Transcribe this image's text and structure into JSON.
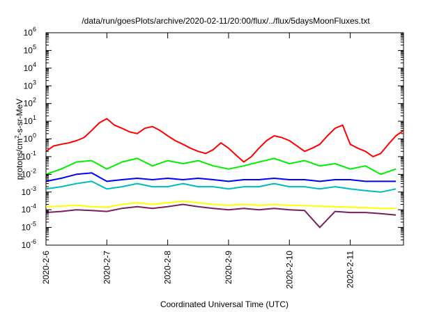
{
  "chart_data": {
    "type": "line",
    "title": "/data/run/goesPlots/archive/2020-02-11/20:00/flux/../flux/5daysMoonFluxes.txt",
    "xlabel": "Coordinated Universal Time (UTC)",
    "ylabel": "protons/cm²-s-sr-MeV",
    "ylabel_parts": {
      "pre": "protons/cm",
      "sup": "2",
      "post": "-s-sr-MeV"
    },
    "yscale": "log",
    "ylim": [
      1e-06,
      1000000.0
    ],
    "xlim": [
      "2020-02-06T00:00",
      "2020-02-11T21:00"
    ],
    "y_ticks": [
      {
        "value": 1e-06,
        "base": "10",
        "exp": "-6"
      },
      {
        "value": 1e-05,
        "base": "10",
        "exp": "-5"
      },
      {
        "value": 0.0001,
        "base": "10",
        "exp": "-4"
      },
      {
        "value": 0.001,
        "base": "10",
        "exp": "-3"
      },
      {
        "value": 0.01,
        "base": "10",
        "exp": "-2"
      },
      {
        "value": 0.1,
        "base": "10",
        "exp": "-1"
      },
      {
        "value": 1,
        "base": "10",
        "exp": "0"
      },
      {
        "value": 10,
        "base": "10",
        "exp": "1"
      },
      {
        "value": 100,
        "base": "10",
        "exp": "2"
      },
      {
        "value": 1000,
        "base": "10",
        "exp": "3"
      },
      {
        "value": 10000,
        "base": "10",
        "exp": "4"
      },
      {
        "value": 100000,
        "base": "10",
        "exp": "5"
      },
      {
        "value": 1000000,
        "base": "10",
        "exp": "6"
      }
    ],
    "x_ticks": [
      {
        "x": "2020-02-06T00:00",
        "label": "2020-2-6"
      },
      {
        "x": "2020-02-07T00:00",
        "label": "2020-2-7"
      },
      {
        "x": "2020-02-08T00:00",
        "label": "2020-2-8"
      },
      {
        "x": "2020-02-09T00:00",
        "label": "2020-2-9"
      },
      {
        "x": "2020-02-10T00:00",
        "label": "2020-2-10"
      },
      {
        "x": "2020-02-11T00:00",
        "label": "2020-2-11"
      }
    ],
    "grid": false,
    "legend": "none",
    "series": [
      {
        "color": "#ff0000",
        "x": [
          "2020-02-06T00:00",
          "2020-02-06T03:00",
          "2020-02-06T06:00",
          "2020-02-06T09:00",
          "2020-02-06T12:00",
          "2020-02-06T15:00",
          "2020-02-06T18:00",
          "2020-02-06T21:00",
          "2020-02-07T00:00",
          "2020-02-07T03:00",
          "2020-02-07T06:00",
          "2020-02-07T09:00",
          "2020-02-07T12:00",
          "2020-02-07T15:00",
          "2020-02-07T18:00",
          "2020-02-07T21:00",
          "2020-02-08T00:00",
          "2020-02-08T03:00",
          "2020-02-08T06:00",
          "2020-02-08T09:00",
          "2020-02-08T12:00",
          "2020-02-08T15:00",
          "2020-02-08T18:00",
          "2020-02-08T21:00",
          "2020-02-09T00:00",
          "2020-02-09T03:00",
          "2020-02-09T06:00",
          "2020-02-09T09:00",
          "2020-02-09T12:00",
          "2020-02-09T15:00",
          "2020-02-09T18:00",
          "2020-02-09T21:00",
          "2020-02-10T00:00",
          "2020-02-10T03:00",
          "2020-02-10T06:00",
          "2020-02-10T09:00",
          "2020-02-10T12:00",
          "2020-02-10T15:00",
          "2020-02-10T18:00",
          "2020-02-10T21:00",
          "2020-02-11T00:00",
          "2020-02-11T03:00",
          "2020-02-11T06:00",
          "2020-02-11T09:00",
          "2020-02-11T12:00",
          "2020-02-11T15:00",
          "2020-02-11T18:00",
          "2020-02-11T21:00"
        ],
        "y": [
          0.2,
          0.4,
          0.5,
          0.6,
          0.8,
          1.2,
          3,
          8,
          14,
          6,
          4,
          2.5,
          2,
          4,
          5,
          3,
          1.5,
          0.8,
          0.5,
          0.3,
          0.2,
          0.15,
          0.25,
          0.6,
          0.3,
          0.12,
          0.05,
          0.1,
          0.3,
          0.8,
          1.5,
          1.2,
          0.8,
          0.4,
          0.2,
          0.3,
          0.5,
          1.5,
          4,
          6,
          0.5,
          0.3,
          0.2,
          0.1,
          0.15,
          0.5,
          1.5,
          3
        ]
      },
      {
        "color": "#00ee00",
        "x": [
          "2020-02-06T00:00",
          "2020-02-06T06:00",
          "2020-02-06T12:00",
          "2020-02-06T18:00",
          "2020-02-07T00:00",
          "2020-02-07T06:00",
          "2020-02-07T12:00",
          "2020-02-07T18:00",
          "2020-02-08T00:00",
          "2020-02-08T06:00",
          "2020-02-08T12:00",
          "2020-02-08T18:00",
          "2020-02-09T00:00",
          "2020-02-09T06:00",
          "2020-02-09T12:00",
          "2020-02-09T18:00",
          "2020-02-10T00:00",
          "2020-02-10T06:00",
          "2020-02-10T12:00",
          "2020-02-10T18:00",
          "2020-02-11T00:00",
          "2020-02-11T06:00",
          "2020-02-11T12:00",
          "2020-02-11T18:00"
        ],
        "y": [
          0.01,
          0.02,
          0.05,
          0.06,
          0.02,
          0.05,
          0.08,
          0.03,
          0.06,
          0.04,
          0.06,
          0.03,
          0.02,
          0.03,
          0.05,
          0.08,
          0.04,
          0.06,
          0.03,
          0.04,
          0.02,
          0.03,
          0.01,
          0.02
        ]
      },
      {
        "color": "#0000ff",
        "x": [
          "2020-02-06T00:00",
          "2020-02-06T06:00",
          "2020-02-06T12:00",
          "2020-02-06T18:00",
          "2020-02-07T00:00",
          "2020-02-07T06:00",
          "2020-02-07T12:00",
          "2020-02-07T18:00",
          "2020-02-08T00:00",
          "2020-02-08T06:00",
          "2020-02-08T12:00",
          "2020-02-08T18:00",
          "2020-02-09T00:00",
          "2020-02-09T06:00",
          "2020-02-09T12:00",
          "2020-02-09T18:00",
          "2020-02-10T00:00",
          "2020-02-10T06:00",
          "2020-02-10T12:00",
          "2020-02-10T18:00",
          "2020-02-11T00:00",
          "2020-02-11T06:00",
          "2020-02-11T12:00",
          "2020-02-11T18:00"
        ],
        "y": [
          0.004,
          0.006,
          0.01,
          0.012,
          0.004,
          0.005,
          0.006,
          0.005,
          0.006,
          0.005,
          0.006,
          0.005,
          0.004,
          0.005,
          0.005,
          0.006,
          0.005,
          0.005,
          0.004,
          0.005,
          0.005,
          0.004,
          0.004,
          0.004
        ]
      },
      {
        "color": "#00bbbb",
        "x": [
          "2020-02-06T00:00",
          "2020-02-06T06:00",
          "2020-02-06T12:00",
          "2020-02-06T18:00",
          "2020-02-07T00:00",
          "2020-02-07T06:00",
          "2020-02-07T12:00",
          "2020-02-07T18:00",
          "2020-02-08T00:00",
          "2020-02-08T06:00",
          "2020-02-08T12:00",
          "2020-02-08T18:00",
          "2020-02-09T00:00",
          "2020-02-09T06:00",
          "2020-02-09T12:00",
          "2020-02-09T18:00",
          "2020-02-10T00:00",
          "2020-02-10T06:00",
          "2020-02-10T12:00",
          "2020-02-10T18:00",
          "2020-02-11T00:00",
          "2020-02-11T06:00",
          "2020-02-11T12:00",
          "2020-02-11T18:00"
        ],
        "y": [
          0.0015,
          0.002,
          0.003,
          0.004,
          0.0015,
          0.002,
          0.003,
          0.002,
          0.002,
          0.003,
          0.002,
          0.002,
          0.0015,
          0.002,
          0.002,
          0.003,
          0.002,
          0.002,
          0.0015,
          0.002,
          0.0015,
          0.0012,
          0.001,
          0.0015
        ]
      },
      {
        "color": "#ffff00",
        "x": [
          "2020-02-06T00:00",
          "2020-02-06T06:00",
          "2020-02-06T12:00",
          "2020-02-06T18:00",
          "2020-02-07T00:00",
          "2020-02-07T06:00",
          "2020-02-07T12:00",
          "2020-02-07T18:00",
          "2020-02-08T00:00",
          "2020-02-08T06:00",
          "2020-02-08T12:00",
          "2020-02-08T18:00",
          "2020-02-09T00:00",
          "2020-02-09T06:00",
          "2020-02-09T12:00",
          "2020-02-09T18:00",
          "2020-02-10T00:00",
          "2020-02-10T06:00",
          "2020-02-10T12:00",
          "2020-02-10T18:00",
          "2020-02-11T00:00",
          "2020-02-11T06:00",
          "2020-02-11T12:00",
          "2020-02-11T18:00"
        ],
        "y": [
          0.00015,
          0.00016,
          0.00018,
          0.00015,
          0.00014,
          0.0002,
          0.00025,
          0.0002,
          0.00025,
          0.0003,
          0.00025,
          0.0002,
          0.00018,
          0.0002,
          0.00018,
          0.0002,
          0.00018,
          0.00017,
          0.00016,
          0.00015,
          0.00014,
          0.00013,
          0.00012,
          0.00012
        ]
      },
      {
        "color": "#7a1f5a",
        "x": [
          "2020-02-06T00:00",
          "2020-02-06T06:00",
          "2020-02-06T12:00",
          "2020-02-06T18:00",
          "2020-02-07T00:00",
          "2020-02-07T06:00",
          "2020-02-07T12:00",
          "2020-02-07T18:00",
          "2020-02-08T00:00",
          "2020-02-08T06:00",
          "2020-02-08T12:00",
          "2020-02-08T18:00",
          "2020-02-09T00:00",
          "2020-02-09T06:00",
          "2020-02-09T12:00",
          "2020-02-09T18:00",
          "2020-02-10T00:00",
          "2020-02-10T06:00",
          "2020-02-10T12:00",
          "2020-02-10T18:00",
          "2020-02-11T00:00",
          "2020-02-11T06:00",
          "2020-02-11T12:00",
          "2020-02-11T18:00"
        ],
        "y": [
          7e-05,
          8e-05,
          0.0001,
          9e-05,
          8e-05,
          0.00012,
          0.00015,
          0.00012,
          0.00015,
          0.0002,
          0.00015,
          0.00012,
          0.0001,
          0.00012,
          0.0001,
          0.00012,
          0.0001,
          9e-05,
          1e-05,
          8e-05,
          7e-05,
          7e-05,
          6e-05,
          5e-05
        ]
      }
    ]
  }
}
